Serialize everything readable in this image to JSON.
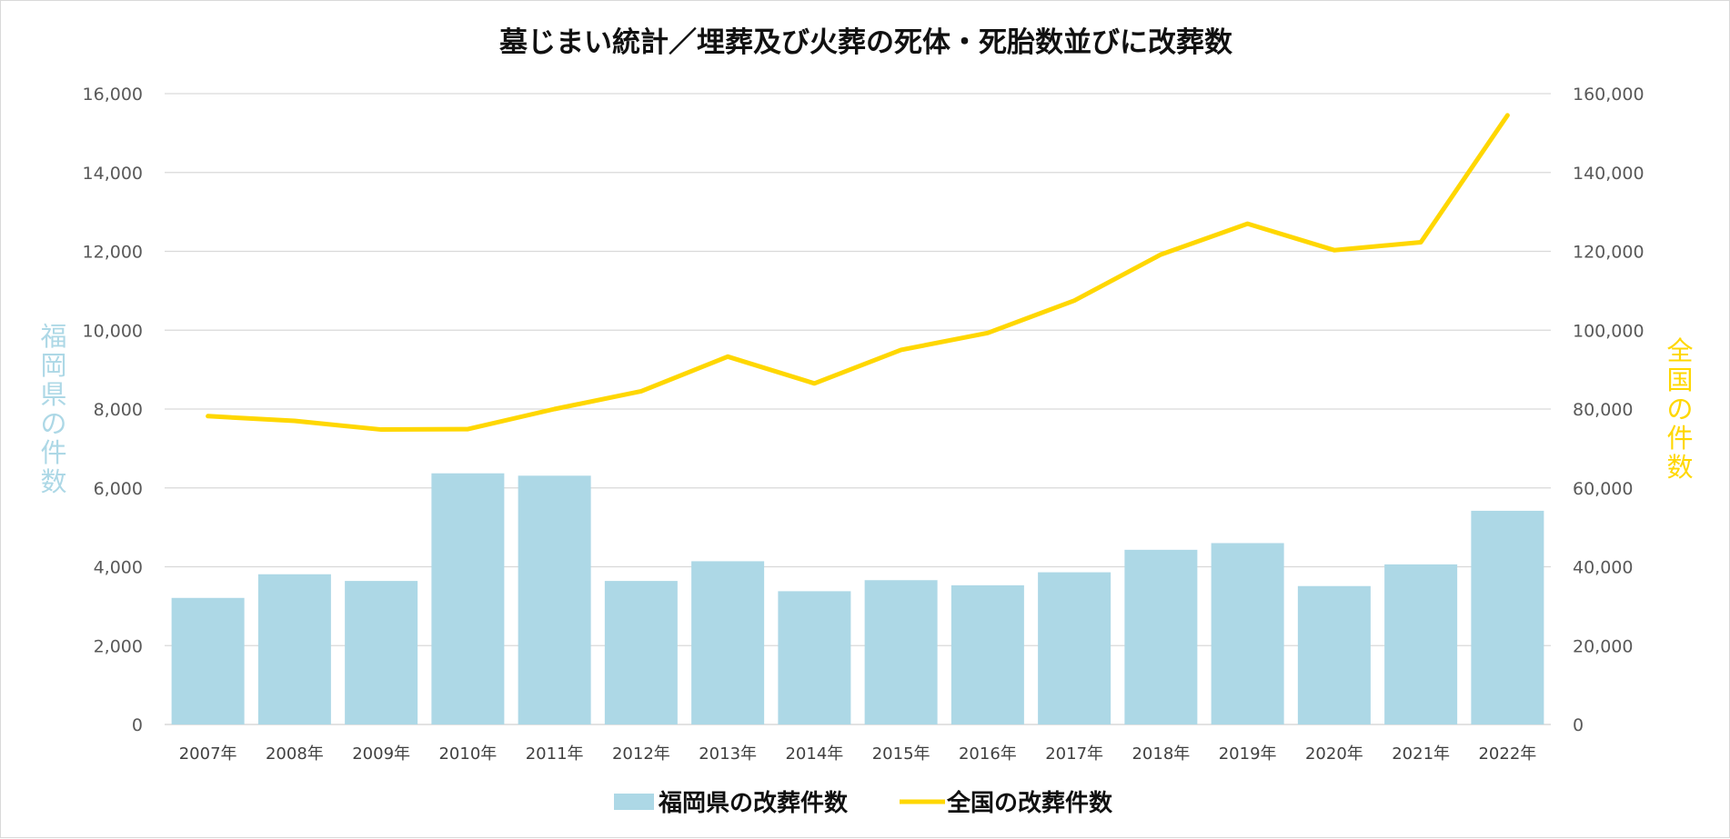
{
  "chart_data": {
    "type": "bar+line",
    "title": "墓じまい統計／埋葬及び火葬の死体・死胎数並びに改葬数",
    "categories": [
      "2007年",
      "2008年",
      "2009年",
      "2010年",
      "2011年",
      "2012年",
      "2013年",
      "2014年",
      "2015年",
      "2016年",
      "2017年",
      "2018年",
      "2019年",
      "2020年",
      "2021年",
      "2022年"
    ],
    "series": [
      {
        "name": "福岡県の改葬件数",
        "type": "bar",
        "axis": "left",
        "color": "#add8e6",
        "values": [
          3210,
          3810,
          3640,
          6370,
          6310,
          3640,
          4140,
          3380,
          3660,
          3530,
          3860,
          4430,
          4600,
          3510,
          4060,
          5420
        ]
      },
      {
        "name": "全国の改葬件数",
        "type": "line",
        "axis": "right",
        "color": "#ffd700",
        "values": [
          78200,
          77000,
          74800,
          74900,
          80000,
          84500,
          93300,
          86500,
          95000,
          99300,
          107500,
          119200,
          127000,
          120300,
          122300,
          154500
        ]
      }
    ],
    "y_left": {
      "label": "福岡県の件数",
      "ylim": [
        0,
        16000
      ],
      "ticks": [
        "0",
        "2,000",
        "4,000",
        "6,000",
        "8,000",
        "10,000",
        "12,000",
        "14,000",
        "16,000"
      ],
      "tick_values": [
        0,
        2000,
        4000,
        6000,
        8000,
        10000,
        12000,
        14000,
        16000
      ],
      "color": "#add8e6"
    },
    "y_right": {
      "label": "全国の件数",
      "ylim": [
        0,
        160000
      ],
      "ticks": [
        "0",
        "20,000",
        "40,000",
        "60,000",
        "80,000",
        "100,000",
        "120,000",
        "140,000",
        "160,000"
      ],
      "tick_values": [
        0,
        20000,
        40000,
        60000,
        80000,
        100000,
        120000,
        140000,
        160000
      ],
      "color": "#ffd700"
    },
    "grid": true,
    "legend_position": "bottom"
  }
}
